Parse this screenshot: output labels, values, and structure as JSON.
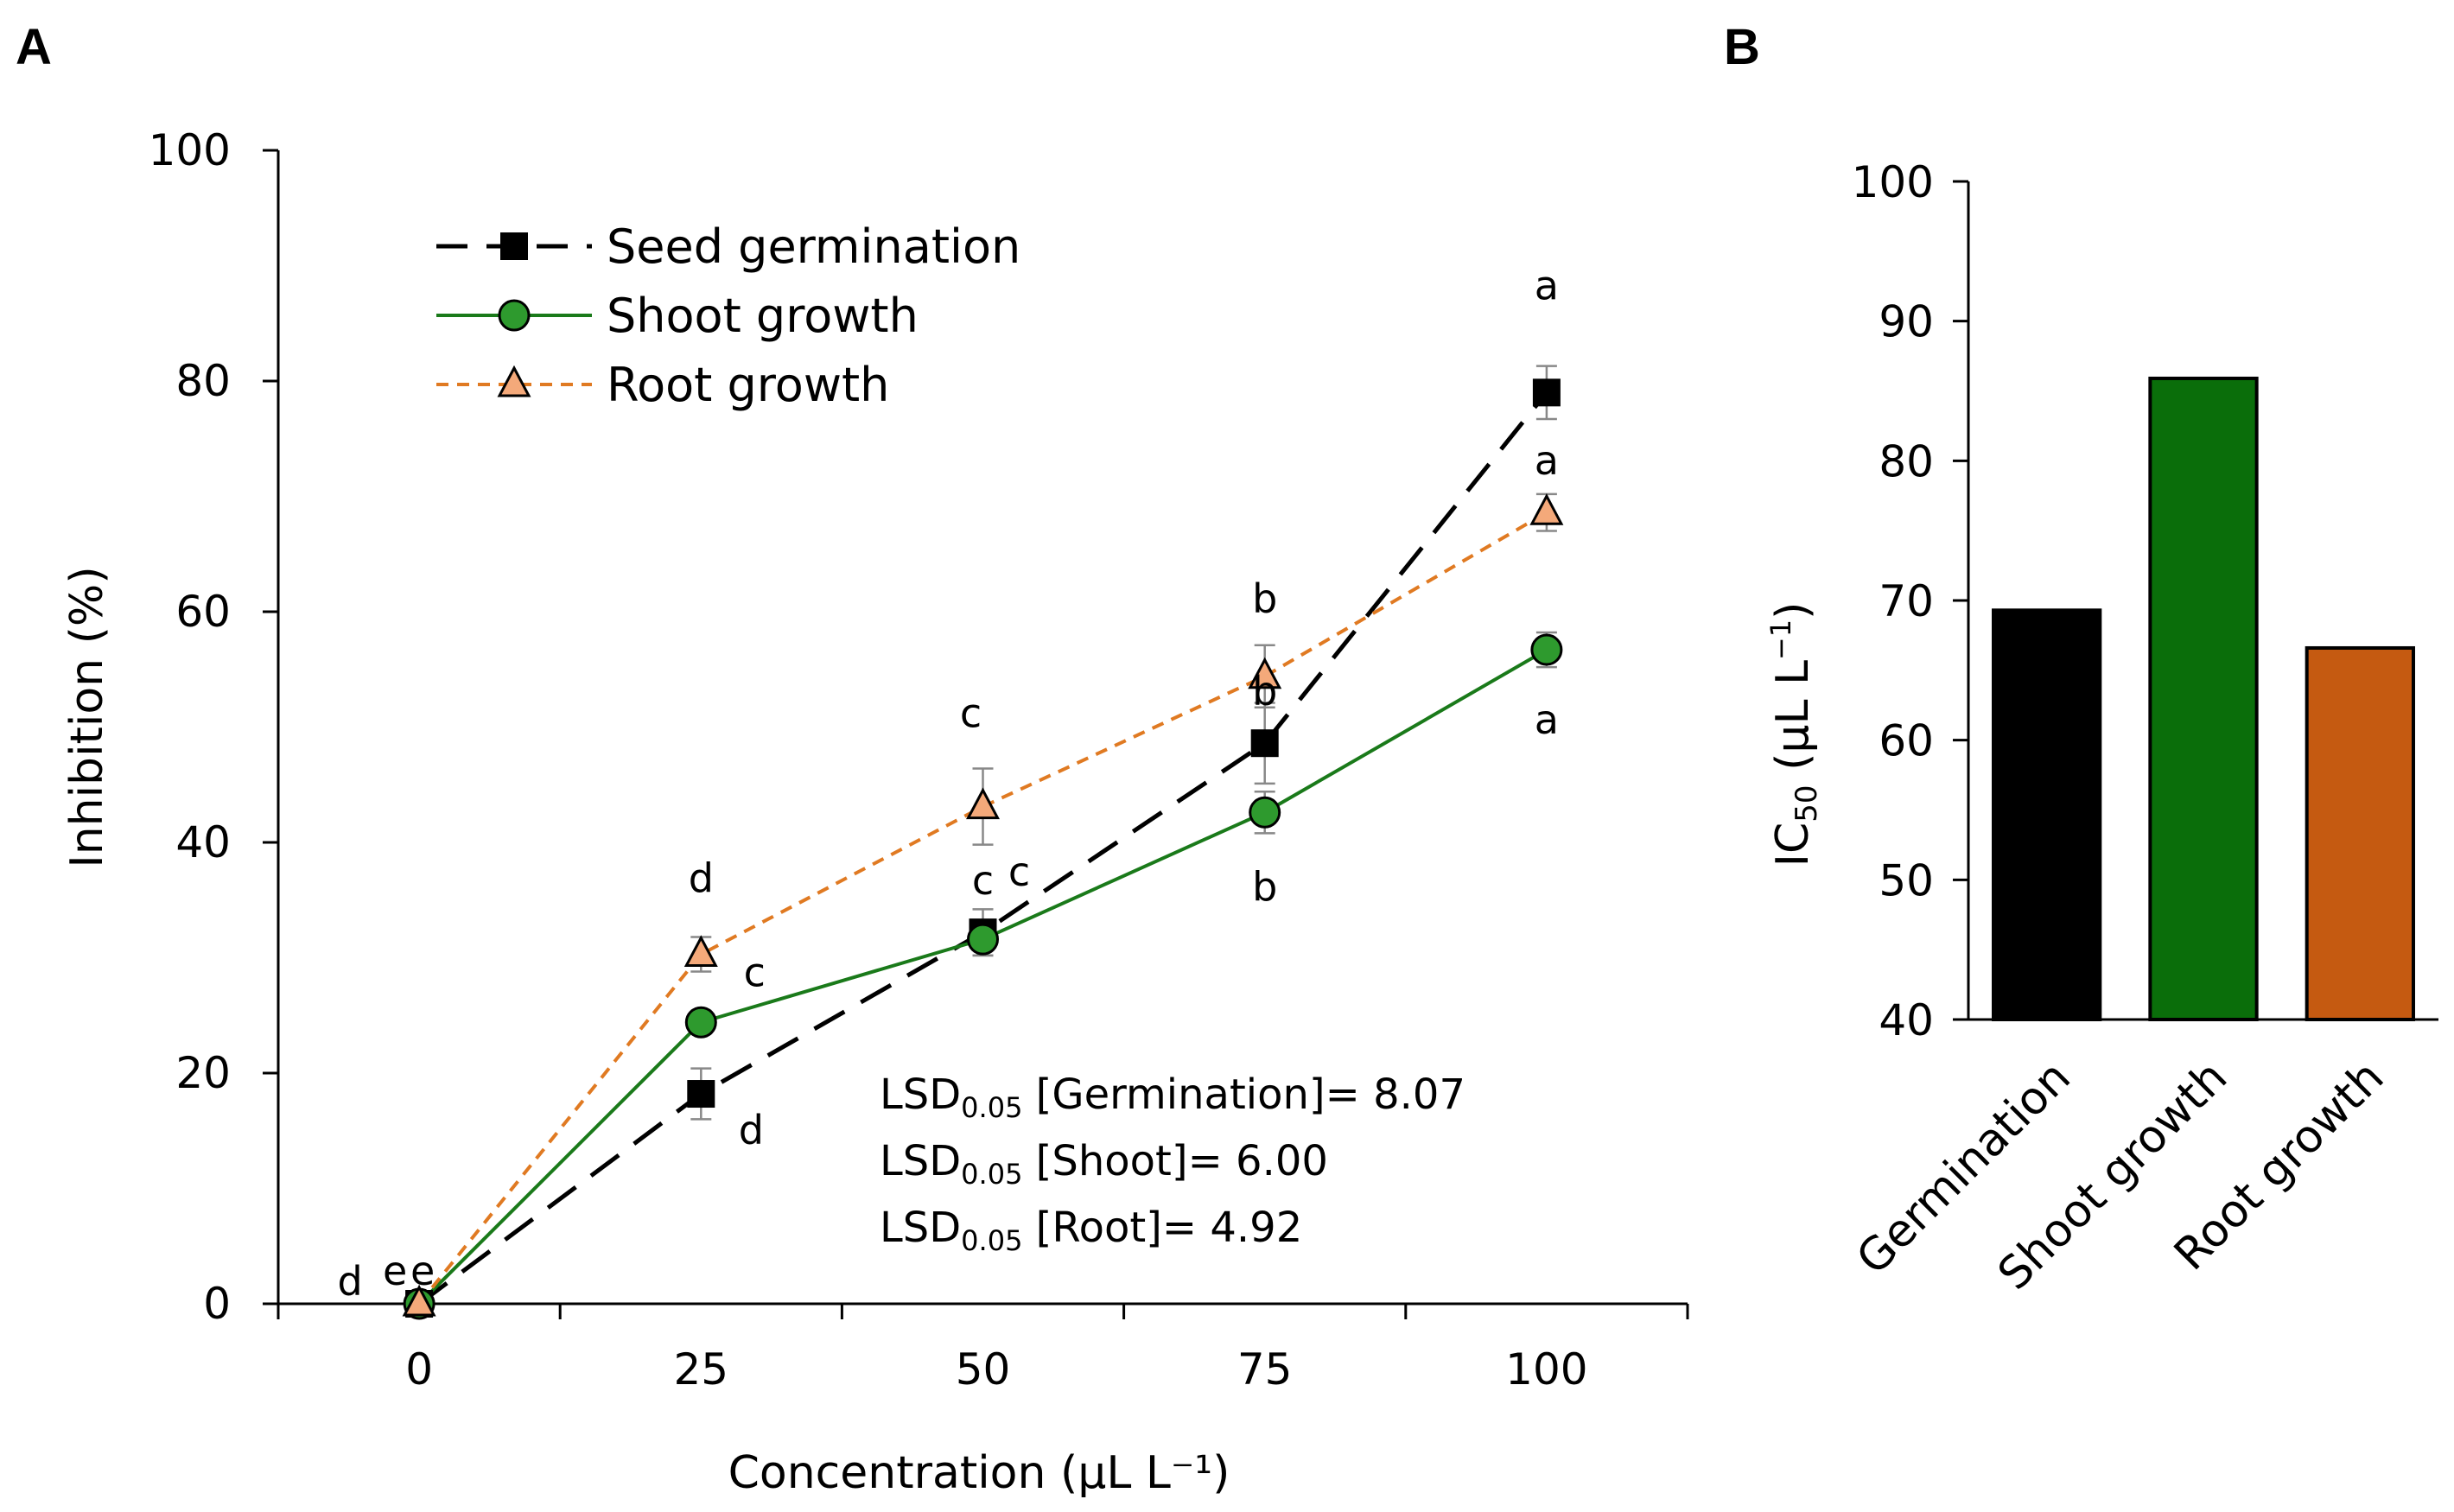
{
  "chart_data": [
    {
      "panel": "A",
      "type": "line",
      "xlabel": "Concentration (µL L⁻¹)",
      "ylabel": "Inhibition (%)",
      "x": [
        0,
        25,
        50,
        75,
        100
      ],
      "xlim": [
        -12.5,
        112.5
      ],
      "ylim": [
        0,
        100
      ],
      "xticks": [
        "0",
        "25",
        "50",
        "75",
        "100"
      ],
      "yticks": [
        "0",
        "20",
        "40",
        "60",
        "80",
        "100"
      ],
      "series": [
        {
          "name": "Seed germination",
          "color": "#000000",
          "marker": "square",
          "line": "dashed",
          "values": [
            0,
            18.2,
            32.2,
            48.6,
            79.0
          ],
          "errors": [
            0.8,
            2.2,
            2.0,
            3.5,
            2.3
          ],
          "letters": [
            "d",
            "d",
            "c",
            "b",
            "a"
          ]
        },
        {
          "name": "Shoot growth",
          "color": "#1a7a1a",
          "marker": "circle",
          "line": "solid",
          "values": [
            0,
            24.4,
            31.6,
            42.6,
            56.7
          ],
          "errors": [
            0.8,
            1.0,
            1.4,
            1.8,
            1.5
          ],
          "letters": [
            "e",
            "c",
            "c",
            "b",
            "a"
          ]
        },
        {
          "name": "Root growth",
          "color": "#e07a22",
          "marker": "triangle",
          "line": "dotted",
          "values": [
            0,
            30.3,
            43.1,
            54.4,
            68.6
          ],
          "errors": [
            0.8,
            1.5,
            3.3,
            2.7,
            1.6
          ],
          "letters": [
            "e",
            "d",
            "c",
            "b",
            "a"
          ]
        }
      ],
      "annotations": [
        {
          "prefix": "LSD",
          "sub": "0.05",
          "bracket": " [Germination]",
          "value": "= 8.07"
        },
        {
          "prefix": "LSD",
          "sub": "0.05",
          "bracket": " [Shoot]",
          "value": "= 6.00"
        },
        {
          "prefix": "LSD",
          "sub": "0.05",
          "bracket": " [Root]",
          "value": "= 4.92"
        }
      ]
    },
    {
      "panel": "B",
      "type": "bar",
      "ylabel_main": "IC",
      "ylabel_sub": "50",
      "ylabel_unit": " (µL L",
      "ylabel_sup": "−1",
      "ylabel_close": ")",
      "categories": [
        "Germination",
        "Shoot growth",
        "Root growth"
      ],
      "values": [
        69.3,
        85.9,
        66.6
      ],
      "colors": [
        "#000000",
        "#0a6e0a",
        "#c55a11"
      ],
      "ylim": [
        40,
        100
      ],
      "yticks": [
        "40",
        "50",
        "60",
        "70",
        "80",
        "90",
        "100"
      ]
    }
  ]
}
